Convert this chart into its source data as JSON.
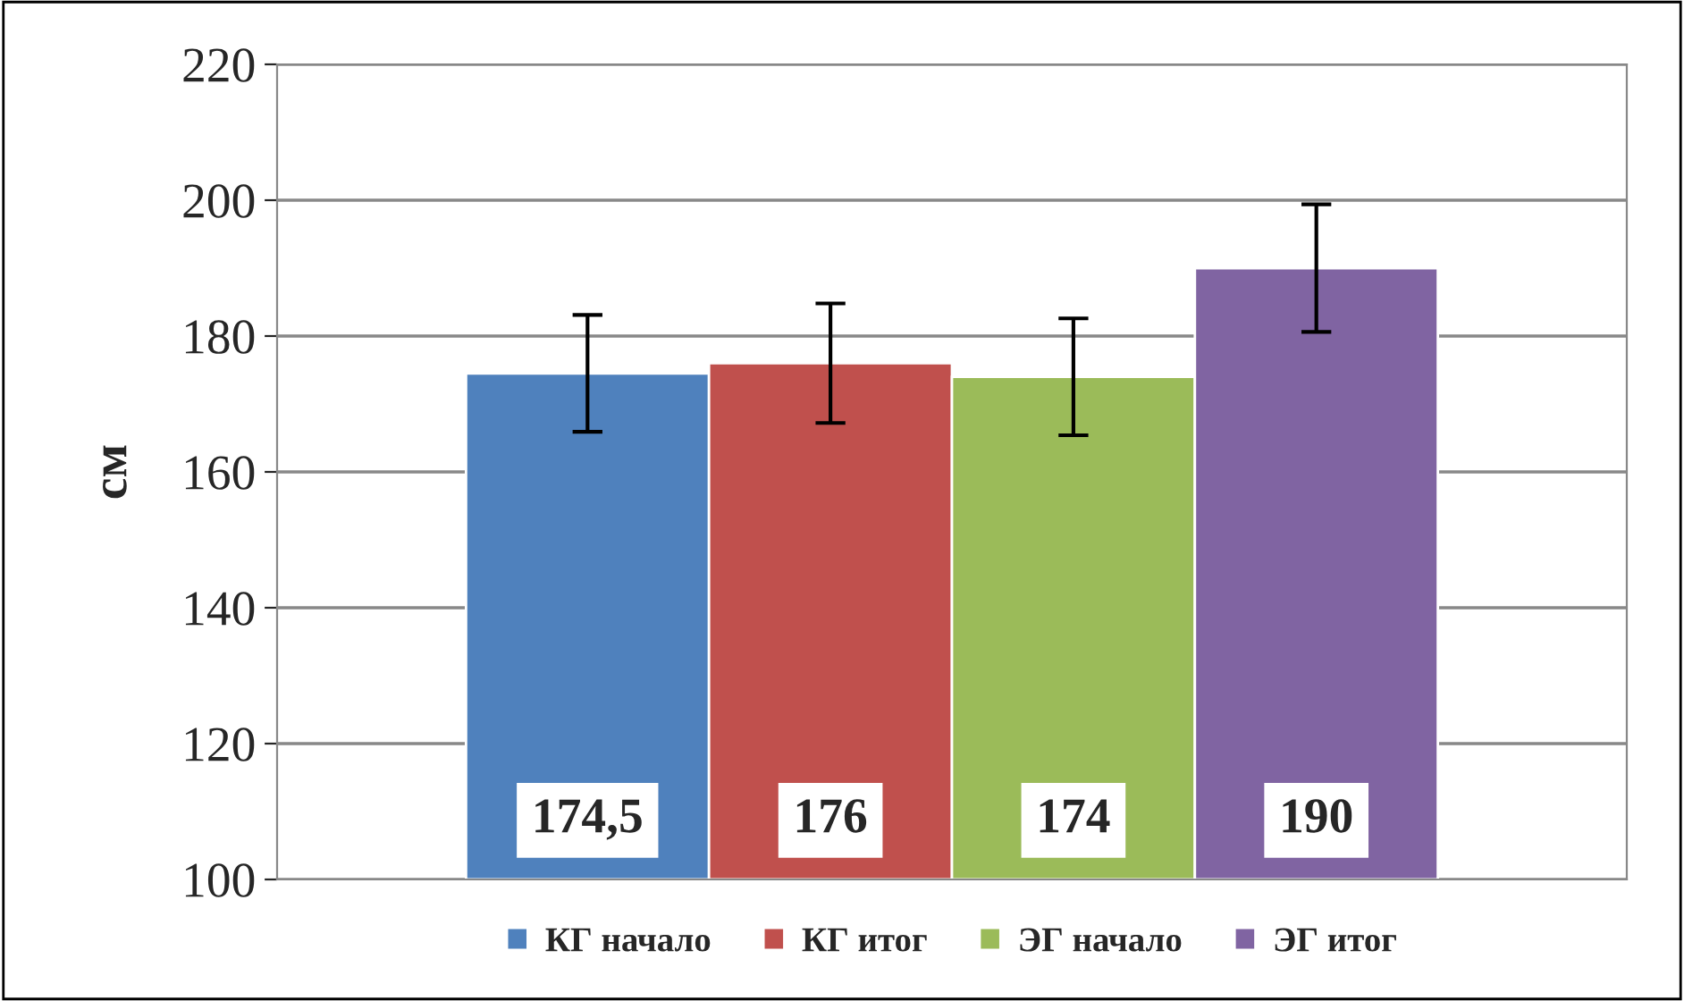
{
  "chart_data": {
    "type": "bar",
    "ylabel": "см",
    "categories": [
      null
    ],
    "series": [
      {
        "name": "КГ начало",
        "color": "#4f81bd",
        "values": [
          174.5
        ],
        "errors": [
          8.6
        ],
        "value_labels": [
          "174,5"
        ]
      },
      {
        "name": "КГ итог",
        "color": "#c0504d",
        "values": [
          176
        ],
        "errors": [
          8.8
        ],
        "value_labels": [
          "176"
        ]
      },
      {
        "name": "ЭГ начало",
        "color": "#9bbb59",
        "values": [
          174
        ],
        "errors": [
          8.6
        ],
        "value_labels": [
          "174"
        ]
      },
      {
        "name": "ЭГ итог",
        "color": "#8064a2",
        "values": [
          190
        ],
        "errors": [
          9.4
        ],
        "value_labels": [
          "190"
        ]
      }
    ],
    "ylim": [
      100,
      220
    ],
    "yticks": [
      100,
      120,
      140,
      160,
      180,
      200,
      220
    ],
    "grid": "y",
    "legend": "bottom"
  }
}
